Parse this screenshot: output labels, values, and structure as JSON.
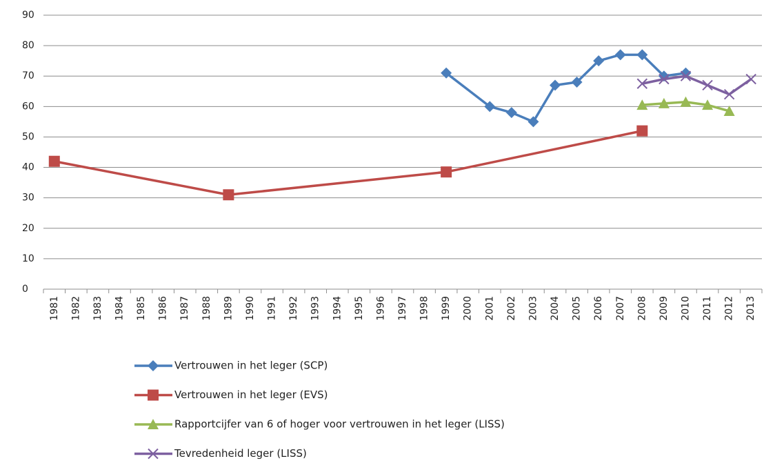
{
  "chart_data": {
    "type": "line",
    "categories": [
      "1981",
      "1982",
      "1983",
      "1984",
      "1985",
      "1986",
      "1987",
      "1988",
      "1989",
      "1990",
      "1991",
      "1992",
      "1993",
      "1994",
      "1995",
      "1996",
      "1997",
      "1998",
      "1999",
      "2000",
      "2001",
      "2002",
      "2003",
      "2004",
      "2005",
      "2006",
      "2007",
      "2008",
      "2009",
      "2010",
      "2011",
      "2012",
      "2013"
    ],
    "series": [
      {
        "name": "Vertrouwen in het leger (SCP)",
        "color": "#4a7ebb",
        "marker": "diamond",
        "x": [
          "1999",
          "2001",
          "2002",
          "2003",
          "2004",
          "2005",
          "2006",
          "2007",
          "2008",
          "2009",
          "2010"
        ],
        "values": [
          71,
          60,
          58,
          55,
          67,
          68,
          75,
          77,
          77,
          70,
          71
        ]
      },
      {
        "name": "Vertrouwen in het leger (EVS)",
        "color": "#be4b48",
        "marker": "square",
        "x": [
          "1981",
          "1989",
          "1999",
          "2008"
        ],
        "values": [
          42,
          31,
          38.5,
          52
        ]
      },
      {
        "name": "Rapportcijfer van 6 of hoger voor vertrouwen in het leger (LISS)",
        "color": "#98b954",
        "marker": "triangle",
        "x": [
          "2008",
          "2009",
          "2010",
          "2011",
          "2012"
        ],
        "values": [
          60.5,
          61,
          61.5,
          60.5,
          58.5
        ]
      },
      {
        "name": "Tevredenheid leger (LISS)",
        "color": "#7d60a0",
        "marker": "x",
        "x": [
          "2008",
          "2009",
          "2010",
          "2011",
          "2012",
          "2013"
        ],
        "values": [
          67.5,
          69,
          70,
          67,
          64,
          69
        ]
      }
    ],
    "ylim": [
      0,
      90
    ],
    "yticks": [
      0,
      10,
      20,
      30,
      40,
      50,
      60,
      70,
      80,
      90
    ],
    "grid": true,
    "legend": "bottom"
  }
}
